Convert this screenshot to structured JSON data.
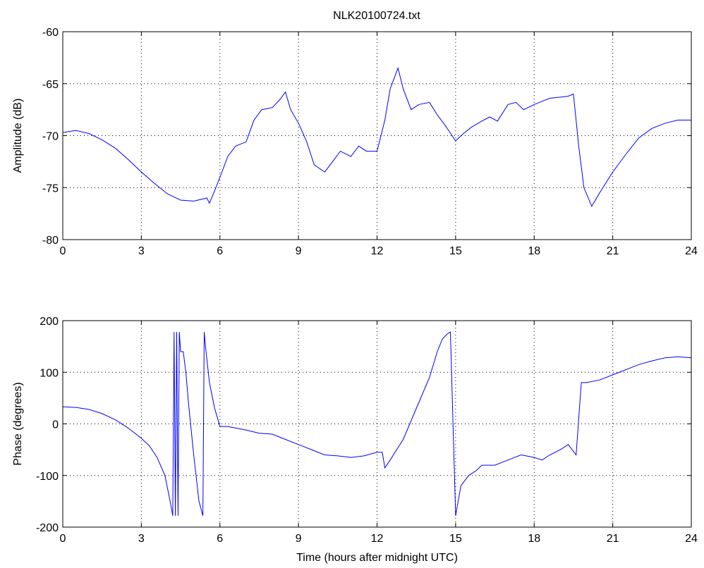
{
  "title": "NLK20100724.txt",
  "chart_data": [
    {
      "type": "line",
      "ylabel": "Amplitude (dB)",
      "xlabel": "",
      "xlim": [
        0,
        24
      ],
      "ylim": [
        -80,
        -60
      ],
      "xticks": [
        0,
        3,
        6,
        9,
        12,
        15,
        18,
        21,
        24
      ],
      "yticks": [
        -80,
        -75,
        -70,
        -65,
        -60
      ],
      "grid": true,
      "color": "#0000ff",
      "series": [
        {
          "x": [
            0,
            0.5,
            1,
            1.5,
            2,
            2.5,
            3,
            3.5,
            4,
            4.5,
            5,
            5.5,
            5.6,
            5.8,
            6,
            6.3,
            6.6,
            7,
            7.3,
            7.6,
            8,
            8.3,
            8.5,
            8.7,
            9,
            9.3,
            9.6,
            10,
            10.3,
            10.6,
            11,
            11.3,
            11.6,
            12,
            12.3,
            12.5,
            12.8,
            13,
            13.3,
            13.6,
            14,
            14.3,
            14.6,
            15,
            15.3,
            15.6,
            16,
            16.3,
            16.6,
            17,
            17.3,
            17.6,
            18,
            18.3,
            18.6,
            19,
            19.3,
            19.5,
            19.7,
            19.9,
            20.2,
            20.5,
            21,
            21.5,
            22,
            22.5,
            23,
            23.5,
            24
          ],
          "y": [
            -69.7,
            -69.5,
            -69.8,
            -70.4,
            -71.2,
            -72.3,
            -73.5,
            -74.6,
            -75.6,
            -76.2,
            -76.3,
            -76.0,
            -76.5,
            -75.3,
            -74.0,
            -72.0,
            -71.0,
            -70.6,
            -68.5,
            -67.5,
            -67.3,
            -66.5,
            -65.8,
            -67.5,
            -68.8,
            -70.5,
            -72.8,
            -73.5,
            -72.5,
            -71.5,
            -72.0,
            -71.0,
            -71.5,
            -71.5,
            -68.5,
            -65.5,
            -63.5,
            -65.5,
            -67.5,
            -67.0,
            -66.8,
            -68.0,
            -69.0,
            -70.5,
            -69.8,
            -69.2,
            -68.6,
            -68.2,
            -68.6,
            -67.0,
            -66.8,
            -67.5,
            -67.0,
            -66.7,
            -66.4,
            -66.3,
            -66.2,
            -66.0,
            -71.0,
            -75.0,
            -76.8,
            -75.5,
            -73.5,
            -71.8,
            -70.2,
            -69.3,
            -68.8,
            -68.5,
            -68.5
          ]
        }
      ]
    },
    {
      "type": "line",
      "ylabel": "Phase (degrees)",
      "xlabel": "Time (hours after midnight UTC)",
      "xlim": [
        0,
        24
      ],
      "ylim": [
        -200,
        200
      ],
      "xticks": [
        0,
        3,
        6,
        9,
        12,
        15,
        18,
        21,
        24
      ],
      "yticks": [
        -200,
        -100,
        0,
        100,
        200
      ],
      "grid": true,
      "color": "#0000ff",
      "series": [
        {
          "x": [
            0,
            0.5,
            1,
            1.5,
            2,
            2.5,
            3,
            3.3,
            3.6,
            3.9,
            4.1,
            4.2,
            4.25,
            4.3,
            4.35,
            4.4,
            4.45,
            4.5,
            4.6,
            4.7,
            4.8,
            5.0,
            5.2,
            5.35,
            5.4,
            5.45,
            5.6,
            5.8,
            6,
            6.3,
            6.6,
            7,
            7.5,
            8,
            8.5,
            9,
            9.5,
            10,
            10.5,
            11,
            11.5,
            12,
            12.2,
            12.3,
            12.5,
            13,
            13.5,
            14,
            14.3,
            14.5,
            14.7,
            14.8,
            15.0,
            15.2,
            15.5,
            15.8,
            16.0,
            16.5,
            17,
            17.5,
            18,
            18.3,
            18.6,
            19,
            19.3,
            19.6,
            19.8,
            20,
            20.5,
            21,
            21.5,
            22,
            22.5,
            23,
            23.5,
            24
          ],
          "y": [
            33,
            32,
            28,
            20,
            8,
            -8,
            -28,
            -42,
            -65,
            -100,
            -150,
            -178,
            178,
            -178,
            178,
            -178,
            178,
            140,
            140,
            100,
            40,
            -60,
            -150,
            -178,
            178,
            150,
            80,
            30,
            -5,
            -5,
            -8,
            -12,
            -18,
            -20,
            -30,
            -40,
            -50,
            -60,
            -62,
            -65,
            -62,
            -55,
            -55,
            -85,
            -70,
            -30,
            30,
            90,
            140,
            165,
            175,
            178,
            -178,
            -120,
            -100,
            -90,
            -80,
            -80,
            -70,
            -60,
            -65,
            -70,
            -60,
            -50,
            -40,
            -60,
            80,
            80,
            85,
            95,
            105,
            115,
            122,
            128,
            130,
            128
          ]
        }
      ]
    }
  ]
}
